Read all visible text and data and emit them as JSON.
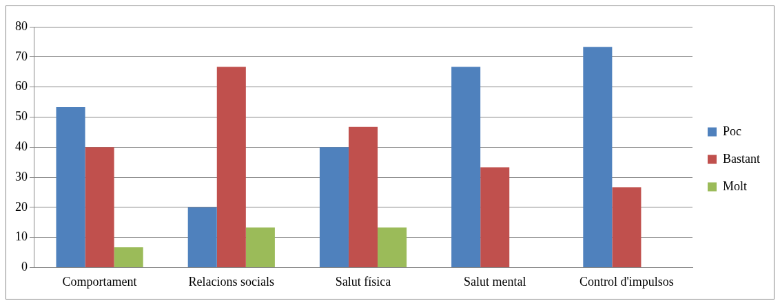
{
  "chart_data": {
    "type": "bar",
    "categories": [
      "Comportament",
      "Relacions socials",
      "Salut física",
      "Salut mental",
      "Control d'impulsos"
    ],
    "series": [
      {
        "name": "Poc",
        "color": "#4f81bd",
        "values": [
          53.3,
          20,
          40,
          66.7,
          73.3
        ]
      },
      {
        "name": "Bastant",
        "color": "#c0504d",
        "values": [
          40,
          66.7,
          46.7,
          33.3,
          26.7
        ]
      },
      {
        "name": "Molt",
        "color": "#9bbb59",
        "values": [
          6.7,
          13.3,
          13.3,
          0,
          0
        ]
      }
    ],
    "ylim": [
      0,
      80
    ],
    "yticks": [
      0,
      10,
      20,
      30,
      40,
      50,
      60,
      70,
      80
    ],
    "grid": "y",
    "legend": "right"
  }
}
